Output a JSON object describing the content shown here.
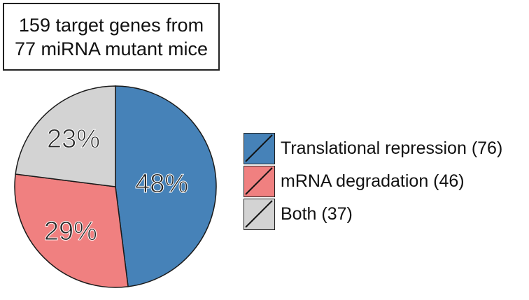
{
  "title": {
    "line1": "159 target genes from",
    "line2": "77 miRNA mutant mice"
  },
  "chart_data": {
    "type": "pie",
    "title": "159 target genes from 77 miRNA mutant mice",
    "slices": [
      {
        "name": "Translational repression",
        "count": 76,
        "percent_label": "48%",
        "value": 48,
        "color": "#4682b8"
      },
      {
        "name": "mRNA degradation",
        "count": 46,
        "percent_label": "29%",
        "value": 29,
        "color": "#f08080"
      },
      {
        "name": "Both",
        "count": 37,
        "percent_label": "23%",
        "value": 23,
        "color": "#d3d3d3"
      }
    ],
    "start_angle_deg": 0,
    "direction": "clockwise",
    "legend_position": "right"
  },
  "legend": {
    "items": [
      {
        "label": "Translational repression (76)",
        "color": "#4682b8"
      },
      {
        "label": "mRNA degradation (46)",
        "color": "#f08080"
      },
      {
        "label": "Both (37)",
        "color": "#d3d3d3"
      }
    ]
  }
}
